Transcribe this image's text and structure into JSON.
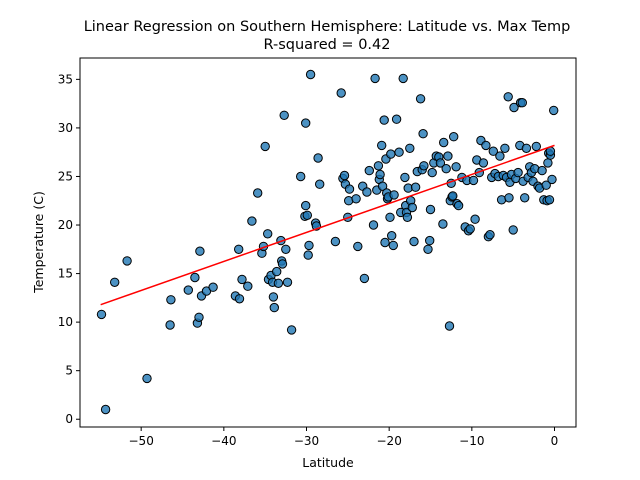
{
  "chart_data": {
    "type": "scatter",
    "title": "Linear Regression on Southern Hemisphere: Latitude vs. Max Temp",
    "subtitle": "R-squared = 0.42",
    "xlabel": "Latitude",
    "ylabel": "Temperature (C)",
    "xlim": [
      -57.4,
      2.6
    ],
    "ylim": [
      -0.8,
      37.2
    ],
    "xticks": [
      -50,
      -40,
      -30,
      -20,
      -10,
      0
    ],
    "xtick_labels": [
      "−50",
      "−40",
      "−30",
      "−20",
      "−10",
      "0"
    ],
    "yticks": [
      0,
      5,
      10,
      15,
      20,
      25,
      30,
      35
    ],
    "ytick_labels": [
      "0",
      "5",
      "10",
      "15",
      "20",
      "25",
      "30",
      "35"
    ],
    "grid": false,
    "colors": {
      "marker": "#1f77b4",
      "marker_edge": "#000000",
      "line": "#ff0000"
    },
    "regression": {
      "x": [
        -54.9,
        0
      ],
      "y": [
        11.8,
        28.2
      ]
    },
    "points": [
      [
        -54.8,
        10.8
      ],
      [
        -54.3,
        1.0
      ],
      [
        -53.2,
        14.1
      ],
      [
        -51.7,
        16.3
      ],
      [
        -49.3,
        4.2
      ],
      [
        -46.5,
        9.7
      ],
      [
        -46.4,
        12.3
      ],
      [
        -44.3,
        13.3
      ],
      [
        -43.5,
        14.6
      ],
      [
        -43.2,
        9.9
      ],
      [
        -43.0,
        10.5
      ],
      [
        -42.9,
        17.3
      ],
      [
        -42.7,
        12.7
      ],
      [
        -42.1,
        13.2
      ],
      [
        -41.3,
        13.6
      ],
      [
        -38.6,
        12.7
      ],
      [
        -38.2,
        17.5
      ],
      [
        -38.1,
        12.4
      ],
      [
        -37.8,
        14.4
      ],
      [
        -37.1,
        13.7
      ],
      [
        -36.6,
        20.4
      ],
      [
        -35.9,
        23.3
      ],
      [
        -35.4,
        17.1
      ],
      [
        -35.2,
        17.8
      ],
      [
        -35.0,
        28.1
      ],
      [
        -34.7,
        19.1
      ],
      [
        -34.6,
        14.4
      ],
      [
        -34.3,
        14.8
      ],
      [
        -34.1,
        14.1
      ],
      [
        -34.0,
        12.6
      ],
      [
        -33.9,
        11.5
      ],
      [
        -33.6,
        15.2
      ],
      [
        -33.4,
        14.0
      ],
      [
        -33.1,
        18.4
      ],
      [
        -33.0,
        16.3
      ],
      [
        -32.9,
        16.0
      ],
      [
        -32.7,
        31.3
      ],
      [
        -32.5,
        17.5
      ],
      [
        -32.3,
        14.1
      ],
      [
        -31.8,
        9.2
      ],
      [
        -30.7,
        25.0
      ],
      [
        -30.2,
        20.9
      ],
      [
        -30.1,
        30.5
      ],
      [
        -30.1,
        22.0
      ],
      [
        -29.9,
        21.0
      ],
      [
        -29.8,
        16.9
      ],
      [
        -29.7,
        17.9
      ],
      [
        -29.5,
        35.5
      ],
      [
        -28.9,
        20.2
      ],
      [
        -28.8,
        19.9
      ],
      [
        -28.6,
        26.9
      ],
      [
        -28.4,
        24.2
      ],
      [
        -26.5,
        18.3
      ],
      [
        -25.8,
        33.6
      ],
      [
        -25.6,
        24.8
      ],
      [
        -25.4,
        25.1
      ],
      [
        -25.3,
        24.2
      ],
      [
        -25.0,
        20.8
      ],
      [
        -24.9,
        22.5
      ],
      [
        -24.8,
        23.7
      ],
      [
        -24.0,
        22.7
      ],
      [
        -23.8,
        17.8
      ],
      [
        -23.2,
        24.0
      ],
      [
        -23.0,
        14.5
      ],
      [
        -22.7,
        23.4
      ],
      [
        -22.4,
        25.6
      ],
      [
        -21.9,
        20.0
      ],
      [
        -21.7,
        35.1
      ],
      [
        -21.5,
        23.6
      ],
      [
        -21.3,
        26.1
      ],
      [
        -21.2,
        24.7
      ],
      [
        -21.1,
        25.2
      ],
      [
        -20.9,
        28.2
      ],
      [
        -20.8,
        24.0
      ],
      [
        -20.6,
        30.8
      ],
      [
        -20.5,
        18.2
      ],
      [
        -20.4,
        26.8
      ],
      [
        -20.3,
        23.3
      ],
      [
        -20.2,
        22.7
      ],
      [
        -20.1,
        22.9
      ],
      [
        -19.9,
        20.8
      ],
      [
        -19.8,
        27.3
      ],
      [
        -19.7,
        18.9
      ],
      [
        -19.5,
        17.9
      ],
      [
        -19.4,
        23.1
      ],
      [
        -19.1,
        30.9
      ],
      [
        -18.8,
        27.5
      ],
      [
        -18.6,
        21.3
      ],
      [
        -18.3,
        35.1
      ],
      [
        -18.1,
        24.9
      ],
      [
        -18.0,
        22.0
      ],
      [
        -17.9,
        21.3
      ],
      [
        -17.8,
        20.8
      ],
      [
        -17.7,
        23.8
      ],
      [
        -17.5,
        27.9
      ],
      [
        -17.4,
        22.5
      ],
      [
        -17.2,
        21.8
      ],
      [
        -17.0,
        18.3
      ],
      [
        -16.8,
        23.9
      ],
      [
        -16.6,
        25.5
      ],
      [
        -16.2,
        33.0
      ],
      [
        -16.0,
        25.7
      ],
      [
        -15.9,
        29.4
      ],
      [
        -15.8,
        26.1
      ],
      [
        -15.3,
        17.5
      ],
      [
        -15.1,
        18.4
      ],
      [
        -15.0,
        21.6
      ],
      [
        -14.8,
        25.4
      ],
      [
        -14.6,
        26.4
      ],
      [
        -14.3,
        27.1
      ],
      [
        -14.0,
        27.0
      ],
      [
        -13.8,
        26.4
      ],
      [
        -13.5,
        20.1
      ],
      [
        -13.4,
        28.5
      ],
      [
        -13.1,
        25.8
      ],
      [
        -12.9,
        27.1
      ],
      [
        -12.7,
        9.6
      ],
      [
        -12.6,
        22.5
      ],
      [
        -12.5,
        24.3
      ],
      [
        -12.4,
        22.9
      ],
      [
        -12.3,
        23.0
      ],
      [
        -12.2,
        29.1
      ],
      [
        -11.9,
        26.0
      ],
      [
        -11.8,
        22.2
      ],
      [
        -11.6,
        22.0
      ],
      [
        -11.2,
        24.9
      ],
      [
        -10.8,
        19.8
      ],
      [
        -10.6,
        24.6
      ],
      [
        -10.4,
        19.4
      ],
      [
        -10.2,
        19.6
      ],
      [
        -9.8,
        24.6
      ],
      [
        -9.6,
        20.6
      ],
      [
        -9.4,
        26.7
      ],
      [
        -9.1,
        25.4
      ],
      [
        -8.9,
        28.7
      ],
      [
        -8.6,
        26.4
      ],
      [
        -8.3,
        28.2
      ],
      [
        -8.0,
        18.8
      ],
      [
        -7.8,
        19.0
      ],
      [
        -7.6,
        24.9
      ],
      [
        -7.4,
        27.6
      ],
      [
        -7.2,
        25.3
      ],
      [
        -6.8,
        25.0
      ],
      [
        -6.6,
        27.1
      ],
      [
        -6.4,
        22.6
      ],
      [
        -6.2,
        25.1
      ],
      [
        -6.0,
        27.9
      ],
      [
        -5.8,
        24.9
      ],
      [
        -5.6,
        33.2
      ],
      [
        -5.5,
        22.8
      ],
      [
        -5.4,
        24.4
      ],
      [
        -5.2,
        25.2
      ],
      [
        -5.0,
        19.5
      ],
      [
        -4.9,
        32.1
      ],
      [
        -4.7,
        24.8
      ],
      [
        -4.4,
        25.4
      ],
      [
        -4.2,
        28.2
      ],
      [
        -4.1,
        32.6
      ],
      [
        -3.9,
        32.6
      ],
      [
        -3.8,
        24.5
      ],
      [
        -3.6,
        22.8
      ],
      [
        -3.4,
        27.9
      ],
      [
        -3.2,
        24.9
      ],
      [
        -3.0,
        26.0
      ],
      [
        -2.8,
        25.4
      ],
      [
        -2.6,
        24.5
      ],
      [
        -2.4,
        25.8
      ],
      [
        -2.2,
        28.1
      ],
      [
        -2.0,
        24.0
      ],
      [
        -1.8,
        23.8
      ],
      [
        -1.5,
        25.6
      ],
      [
        -1.3,
        22.6
      ],
      [
        -1.0,
        24.1
      ],
      [
        -0.9,
        22.5
      ],
      [
        -0.8,
        26.4
      ],
      [
        -0.7,
        27.4
      ],
      [
        -0.6,
        22.6
      ],
      [
        -0.5,
        27.2
      ],
      [
        -0.5,
        27.6
      ],
      [
        -0.3,
        24.7
      ],
      [
        -0.1,
        31.8
      ]
    ]
  }
}
